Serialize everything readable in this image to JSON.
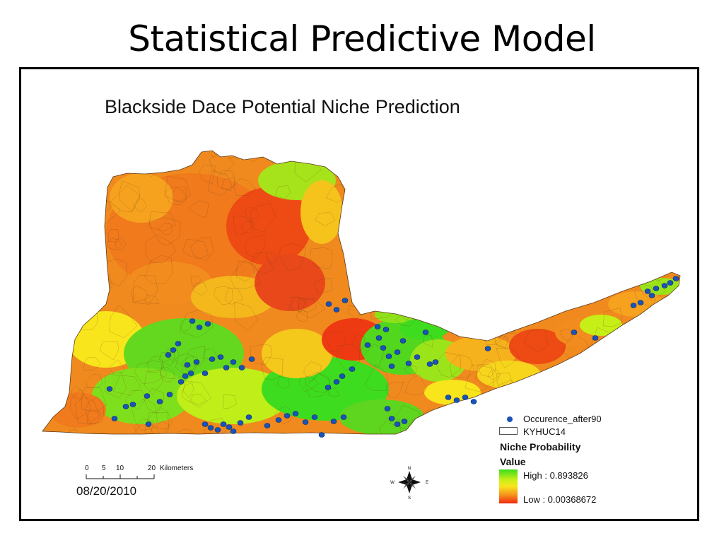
{
  "slide": {
    "title": "Statistical Predictive Model"
  },
  "map": {
    "title": "Blackside Dace Potential Niche Prediction",
    "date": "08/20/2010"
  },
  "legend": {
    "occurrence_label": "Occurence_after90",
    "huc_label": "KYHUC14",
    "niche_heading": "Niche Probability",
    "value_heading": "Value",
    "high_label": "High : 0.893826",
    "low_label": "Low : 0.00368672",
    "colors": {
      "high": "#3ddc1e",
      "mid_high": "#c6ef17",
      "mid": "#f8e51c",
      "mid_low": "#f7921c",
      "low": "#ee2a10",
      "occurrence": "#1a53b8"
    }
  },
  "scale": {
    "ticks": [
      "0",
      "5",
      "10",
      "20"
    ],
    "units": "Kilometers"
  },
  "compass": {
    "n": "N",
    "s": "S",
    "e": "E",
    "w": "W"
  }
}
